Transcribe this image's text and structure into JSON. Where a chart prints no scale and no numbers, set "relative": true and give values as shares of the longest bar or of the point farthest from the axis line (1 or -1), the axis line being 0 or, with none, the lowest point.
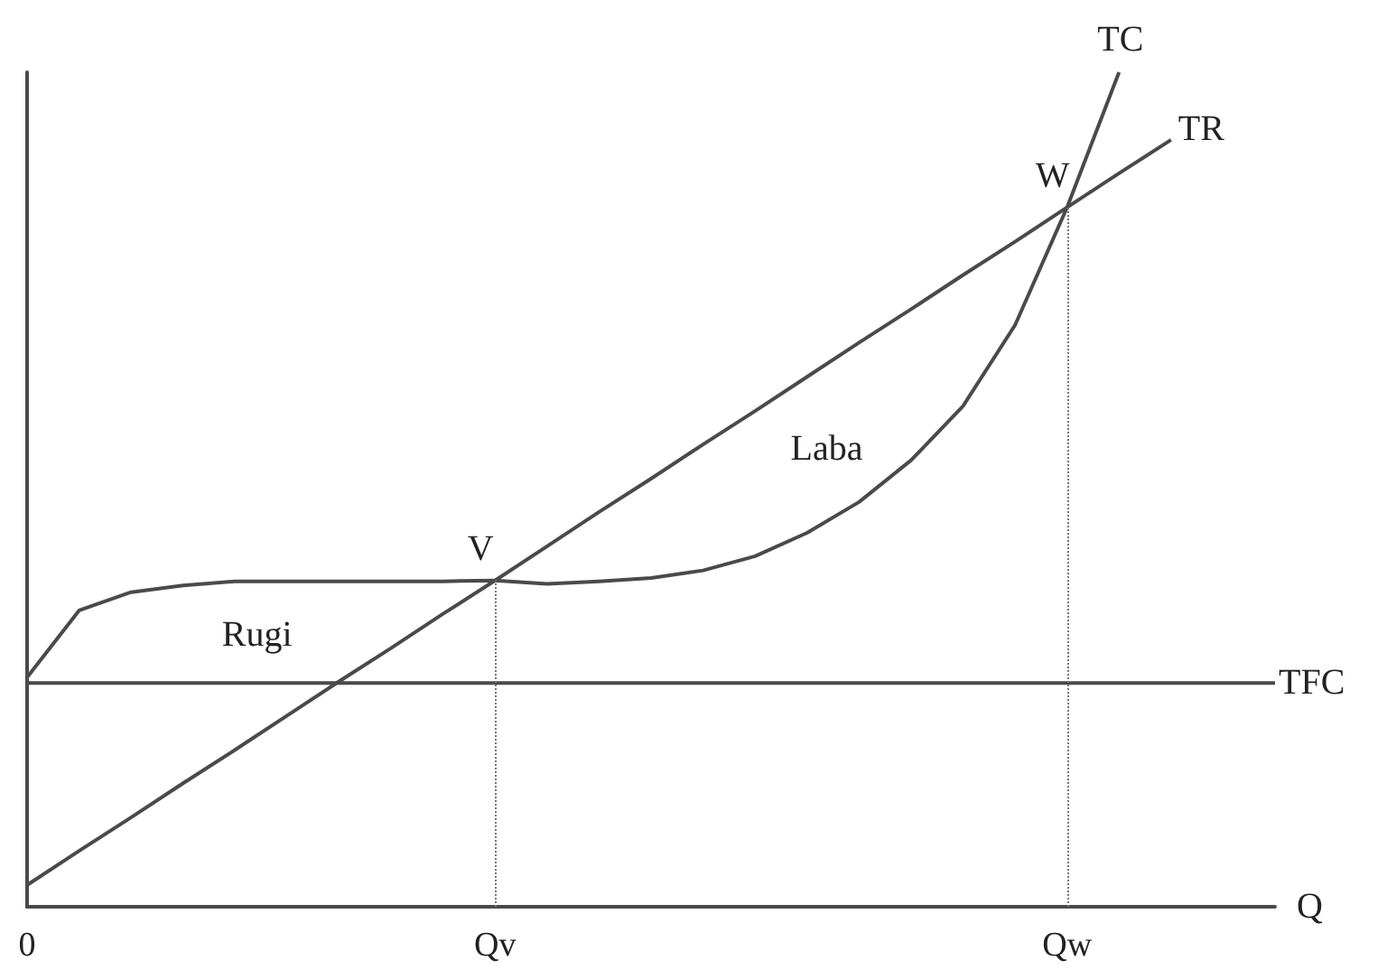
{
  "chart_data": {
    "type": "line",
    "relative": true,
    "xlabel": "Q",
    "categories": [
      "0",
      null,
      null,
      null,
      null,
      null,
      null,
      null,
      null,
      "Qv",
      null,
      null,
      null,
      null,
      null,
      null,
      null,
      null,
      null,
      null,
      "Qw",
      null,
      null,
      null,
      null
    ],
    "series": [
      {
        "name": "TC",
        "color": "#4a4a4a",
        "values": [
          0.275,
          0.355,
          0.377,
          0.385,
          0.39,
          0.39,
          0.39,
          0.39,
          0.39,
          0.391,
          0.387,
          0.39,
          0.394,
          0.403,
          0.42,
          0.448,
          0.485,
          0.535,
          0.6,
          0.697,
          0.838,
          1,
          null,
          null,
          null
        ]
      },
      {
        "name": "TR",
        "color": "#4a4a4a",
        "values": [
          0.026,
          0.067,
          0.107,
          0.148,
          0.188,
          0.229,
          0.27,
          0.31,
          0.351,
          0.391,
          0.432,
          0.473,
          0.513,
          0.554,
          0.594,
          0.635,
          0.676,
          0.716,
          0.757,
          0.797,
          0.838,
          0.879,
          0.919,
          null,
          null
        ]
      },
      {
        "name": "TFC",
        "color": "#4a4a4a",
        "values": [
          0.268,
          0.268,
          0.268,
          0.268,
          0.268,
          0.268,
          0.268,
          0.268,
          0.268,
          0.268,
          0.268,
          0.268,
          0.268,
          0.268,
          0.268,
          0.268,
          0.268,
          0.268,
          0.268,
          0.268,
          0.268,
          0.268,
          0.268,
          0.268,
          0.268
        ]
      }
    ],
    "annotations": [
      {
        "text": "V",
        "x": "Qv",
        "y": 0.391
      },
      {
        "text": "W",
        "x": "Qw",
        "y": 0.838
      },
      "Rugi",
      "Laba"
    ],
    "ref_lines": [
      {
        "axis": "x",
        "value": "Qv",
        "color": "#777777",
        "line_style": "dotted"
      },
      {
        "axis": "x",
        "value": "Qw",
        "color": "#777777",
        "line_style": "dotted"
      }
    ],
    "marker": "none",
    "legend": false
  }
}
